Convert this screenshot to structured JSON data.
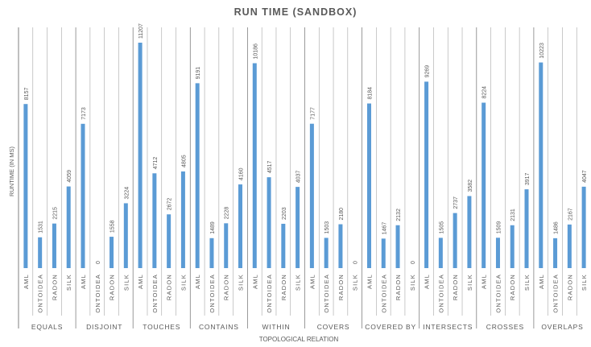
{
  "chart_data": {
    "type": "bar",
    "title": "RUN TIME (SANDBOX)",
    "xlabel": "TOPOLOGICAL RELATION",
    "ylabel": "RUNTIME (IN MS)",
    "ylim": [
      0,
      11207
    ],
    "grid": false,
    "legend": "none",
    "bar_color": "#5b9bd5",
    "groups": [
      {
        "name": "EQUALS",
        "categories": [
          "AML",
          "ONTOIDEA",
          "RADON",
          "SILK"
        ],
        "values": [
          8157,
          1531,
          2215,
          4059
        ]
      },
      {
        "name": "DISJOINT",
        "categories": [
          "AML",
          "ONTOIDEA",
          "RADON",
          "SILK"
        ],
        "values": [
          7173,
          0,
          1558,
          3224
        ]
      },
      {
        "name": "TOUCHES",
        "categories": [
          "AML",
          "ONTOIDEA",
          "RADON",
          "SILK"
        ],
        "values": [
          11207,
          4712,
          2672,
          4805
        ]
      },
      {
        "name": "CONTAINS",
        "categories": [
          "AML",
          "ONTOIDEA",
          "RADON",
          "SILK"
        ],
        "values": [
          9191,
          1489,
          2228,
          4160
        ]
      },
      {
        "name": "WITHIN",
        "categories": [
          "AML",
          "ONTOIDEA",
          "RADON",
          "SILK"
        ],
        "values": [
          10186,
          4517,
          2203,
          4037
        ]
      },
      {
        "name": "COVERS",
        "categories": [
          "AML",
          "ONTOIDEA",
          "RADON",
          "SILK"
        ],
        "values": [
          7177,
          1503,
          2180,
          0
        ]
      },
      {
        "name": "COVERED BY",
        "categories": [
          "AML",
          "ONTOIDEA",
          "RADON",
          "SILK"
        ],
        "values": [
          8184,
          1467,
          2132,
          0
        ]
      },
      {
        "name": "INTERSECTS",
        "categories": [
          "AML",
          "ONTOIDEA",
          "RADON",
          "SILK"
        ],
        "values": [
          9269,
          1505,
          2737,
          3582
        ]
      },
      {
        "name": "CROSSES",
        "categories": [
          "AML",
          "ONTOIDEA",
          "RADON",
          "SILK"
        ],
        "values": [
          8224,
          1509,
          2131,
          3917
        ]
      },
      {
        "name": "OVERLAPS",
        "categories": [
          "AML",
          "ONTOIDEA",
          "RADON",
          "SILK"
        ],
        "values": [
          10223,
          1486,
          2167,
          4047
        ]
      }
    ]
  }
}
